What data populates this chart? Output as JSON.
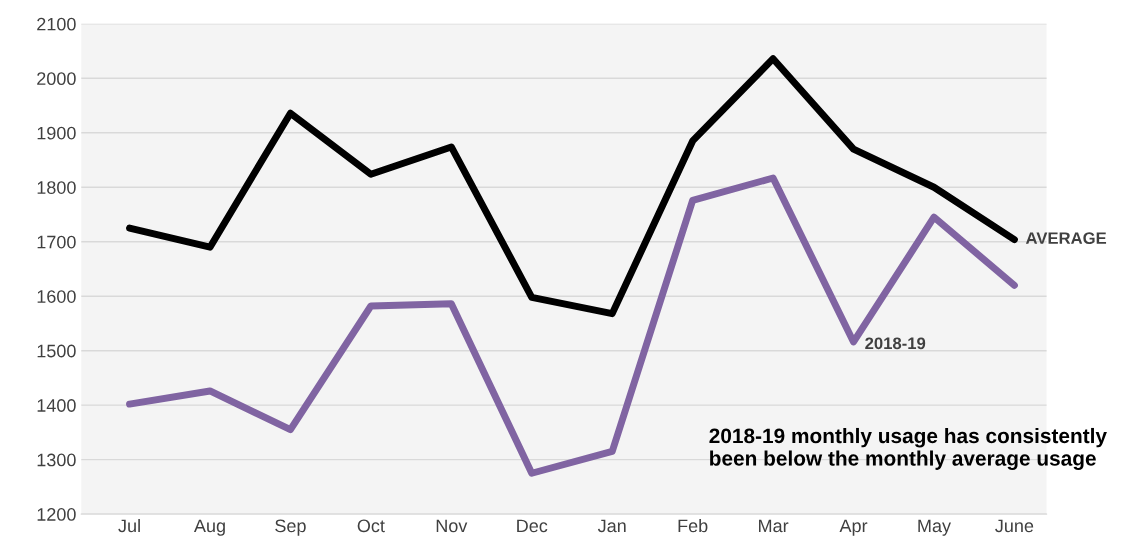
{
  "chart_data": {
    "type": "line",
    "categories": [
      "Jul",
      "Aug",
      "Sep",
      "Oct",
      "Nov",
      "Dec",
      "Jan",
      "Feb",
      "Mar",
      "Apr",
      "May",
      "June"
    ],
    "series": [
      {
        "name": "AVERAGE",
        "color": "#000000",
        "values": [
          1725,
          1690,
          1936,
          1824,
          1874,
          1598,
          1568,
          1885,
          2036,
          1870,
          1800,
          1704
        ]
      },
      {
        "name": "2018-19",
        "color": "#8064a2",
        "values": [
          1402,
          1426,
          1355,
          1582,
          1586,
          1275,
          1315,
          1776,
          1817,
          1516,
          1745,
          1620
        ]
      }
    ],
    "ylim": [
      1200,
      2100
    ],
    "yticks": [
      1200,
      1300,
      1400,
      1500,
      1600,
      1700,
      1800,
      1900,
      2000,
      2100
    ],
    "grid": "y",
    "legend": false,
    "marker": "none",
    "line_style": "solid",
    "annotations": [
      {
        "text": "2018-19 monthly usage has consistently been below the monthly average usage"
      }
    ]
  }
}
